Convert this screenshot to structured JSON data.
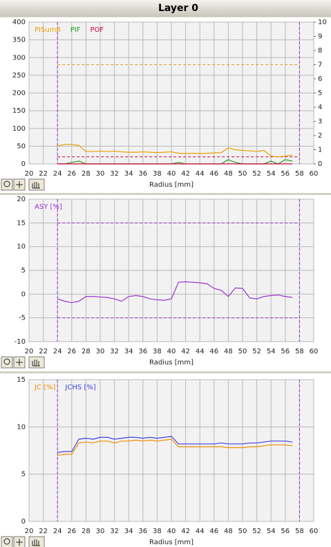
{
  "page_title": "Layer 0",
  "chart_data": [
    {
      "type": "line",
      "xlabel": "Radius [mm]",
      "x": [
        24,
        25,
        26,
        27,
        28,
        29,
        30,
        31,
        32,
        33,
        34,
        35,
        36,
        37,
        38,
        39,
        40,
        41,
        42,
        43,
        44,
        45,
        46,
        47,
        48,
        49,
        50,
        51,
        52,
        53,
        54,
        55,
        56,
        57
      ],
      "xlim": [
        20,
        60
      ],
      "xticks": [
        20,
        22,
        24,
        26,
        28,
        30,
        32,
        34,
        36,
        38,
        40,
        42,
        44,
        46,
        48,
        50,
        52,
        54,
        56,
        58,
        60
      ],
      "ylim": [
        0,
        400
      ],
      "yticks": [
        0,
        50,
        100,
        150,
        200,
        250,
        300,
        350,
        400
      ],
      "y2lim": [
        0,
        10
      ],
      "y2ticks": [
        0,
        1,
        2,
        3,
        4,
        5,
        6,
        7,
        8,
        9,
        10
      ],
      "grid": true,
      "hlines": [
        {
          "value": 280,
          "color": "#d8a030"
        },
        {
          "value": 20,
          "color": "#c8003c"
        }
      ],
      "vlines": [
        {
          "value": 24,
          "color": "#9933cc"
        },
        {
          "value": 58,
          "color": "#9933cc"
        }
      ],
      "series": [
        {
          "name": "PISum8",
          "color": "#e8a000",
          "values": [
            50,
            55,
            55,
            52,
            35,
            35,
            36,
            35,
            36,
            34,
            33,
            33,
            34,
            33,
            32,
            33,
            34,
            30,
            29,
            30,
            29,
            30,
            31,
            32,
            45,
            40,
            38,
            37,
            35,
            38,
            22,
            20,
            22,
            25
          ]
        },
        {
          "name": "PIF",
          "color": "#22a022",
          "axis": "y2",
          "values": [
            0,
            0,
            0.1,
            0.2,
            0,
            0,
            0,
            0,
            0,
            0,
            0,
            0,
            0,
            0,
            0,
            0,
            0,
            0.1,
            0,
            0,
            0,
            0,
            0,
            0,
            0.3,
            0.1,
            0,
            0,
            0,
            0,
            0.2,
            0,
            0.3,
            0.2
          ]
        },
        {
          "name": "POF",
          "color": "#d4003c",
          "axis": "y2",
          "values": [
            0,
            0,
            0,
            0,
            0,
            0,
            0,
            0,
            0,
            0,
            0,
            0,
            0,
            0,
            0,
            0,
            0,
            0,
            0,
            0,
            0,
            0,
            0,
            0,
            0,
            0,
            0,
            0,
            0,
            0,
            0,
            0,
            0,
            0
          ]
        }
      ]
    },
    {
      "type": "line",
      "xlabel": "Radius [mm]",
      "x": [
        24,
        25,
        26,
        27,
        28,
        29,
        30,
        31,
        32,
        33,
        34,
        35,
        36,
        37,
        38,
        39,
        40,
        41,
        42,
        43,
        44,
        45,
        46,
        47,
        48,
        49,
        50,
        51,
        52,
        53,
        54,
        55,
        56,
        57
      ],
      "xlim": [
        20,
        60
      ],
      "xticks": [
        20,
        22,
        24,
        26,
        28,
        30,
        32,
        34,
        36,
        38,
        40,
        42,
        44,
        46,
        48,
        50,
        52,
        54,
        56,
        58,
        60
      ],
      "ylim": [
        -10,
        20
      ],
      "yticks": [
        -10,
        -5,
        0,
        5,
        10,
        15,
        20
      ],
      "grid": true,
      "hlines": [
        {
          "value": 15,
          "color": "#9933cc"
        },
        {
          "value": -5,
          "color": "#9933cc"
        }
      ],
      "vlines": [
        {
          "value": 24,
          "color": "#9933cc"
        },
        {
          "value": 58,
          "color": "#9933cc"
        }
      ],
      "series": [
        {
          "name": "ASY [%]",
          "color": "#9933cc",
          "values": [
            -1,
            -1.5,
            -1.8,
            -1.5,
            -0.5,
            -0.5,
            -0.6,
            -0.7,
            -1,
            -1.5,
            -0.5,
            -0.3,
            -0.5,
            -1,
            -1.2,
            -1.3,
            -1,
            2.5,
            2.6,
            2.5,
            2.4,
            2.2,
            1.2,
            0.8,
            -0.5,
            1.3,
            1.2,
            -0.8,
            -1,
            -0.5,
            -0.3,
            -0.2,
            -0.5,
            -0.7
          ]
        }
      ]
    },
    {
      "type": "line",
      "xlabel": "Radius [mm]",
      "x": [
        24,
        25,
        26,
        27,
        28,
        29,
        30,
        31,
        32,
        33,
        34,
        35,
        36,
        37,
        38,
        39,
        40,
        41,
        42,
        43,
        44,
        45,
        46,
        47,
        48,
        49,
        50,
        51,
        52,
        53,
        54,
        55,
        56,
        57
      ],
      "xlim": [
        20,
        60
      ],
      "xticks": [
        20,
        22,
        24,
        26,
        28,
        30,
        32,
        34,
        36,
        38,
        40,
        42,
        44,
        46,
        48,
        50,
        52,
        54,
        56,
        58,
        60
      ],
      "ylim": [
        0,
        15
      ],
      "yticks": [
        0,
        5,
        10,
        15
      ],
      "grid": true,
      "hlines": [],
      "vlines": [
        {
          "value": 24,
          "color": "#9933cc"
        },
        {
          "value": 58,
          "color": "#9933cc"
        }
      ],
      "series": [
        {
          "name": "JC [%]",
          "color": "#f08c00",
          "values": [
            7,
            7.1,
            7.1,
            8.3,
            8.4,
            8.3,
            8.5,
            8.5,
            8.3,
            8.5,
            8.5,
            8.6,
            8.5,
            8.6,
            8.5,
            8.6,
            8.7,
            7.9,
            7.9,
            7.9,
            7.9,
            7.9,
            7.9,
            7.9,
            7.8,
            7.8,
            7.8,
            7.9,
            7.9,
            8,
            8.1,
            8.1,
            8.1,
            8
          ]
        },
        {
          "name": "JCHS [%]",
          "color": "#4040e0",
          "values": [
            7.3,
            7.4,
            7.4,
            8.7,
            8.8,
            8.7,
            8.9,
            8.9,
            8.7,
            8.8,
            8.9,
            8.9,
            8.8,
            8.9,
            8.8,
            8.9,
            9,
            8.2,
            8.2,
            8.2,
            8.2,
            8.2,
            8.2,
            8.3,
            8.2,
            8.2,
            8.2,
            8.3,
            8.3,
            8.4,
            8.5,
            8.5,
            8.5,
            8.4
          ]
        }
      ]
    }
  ]
}
